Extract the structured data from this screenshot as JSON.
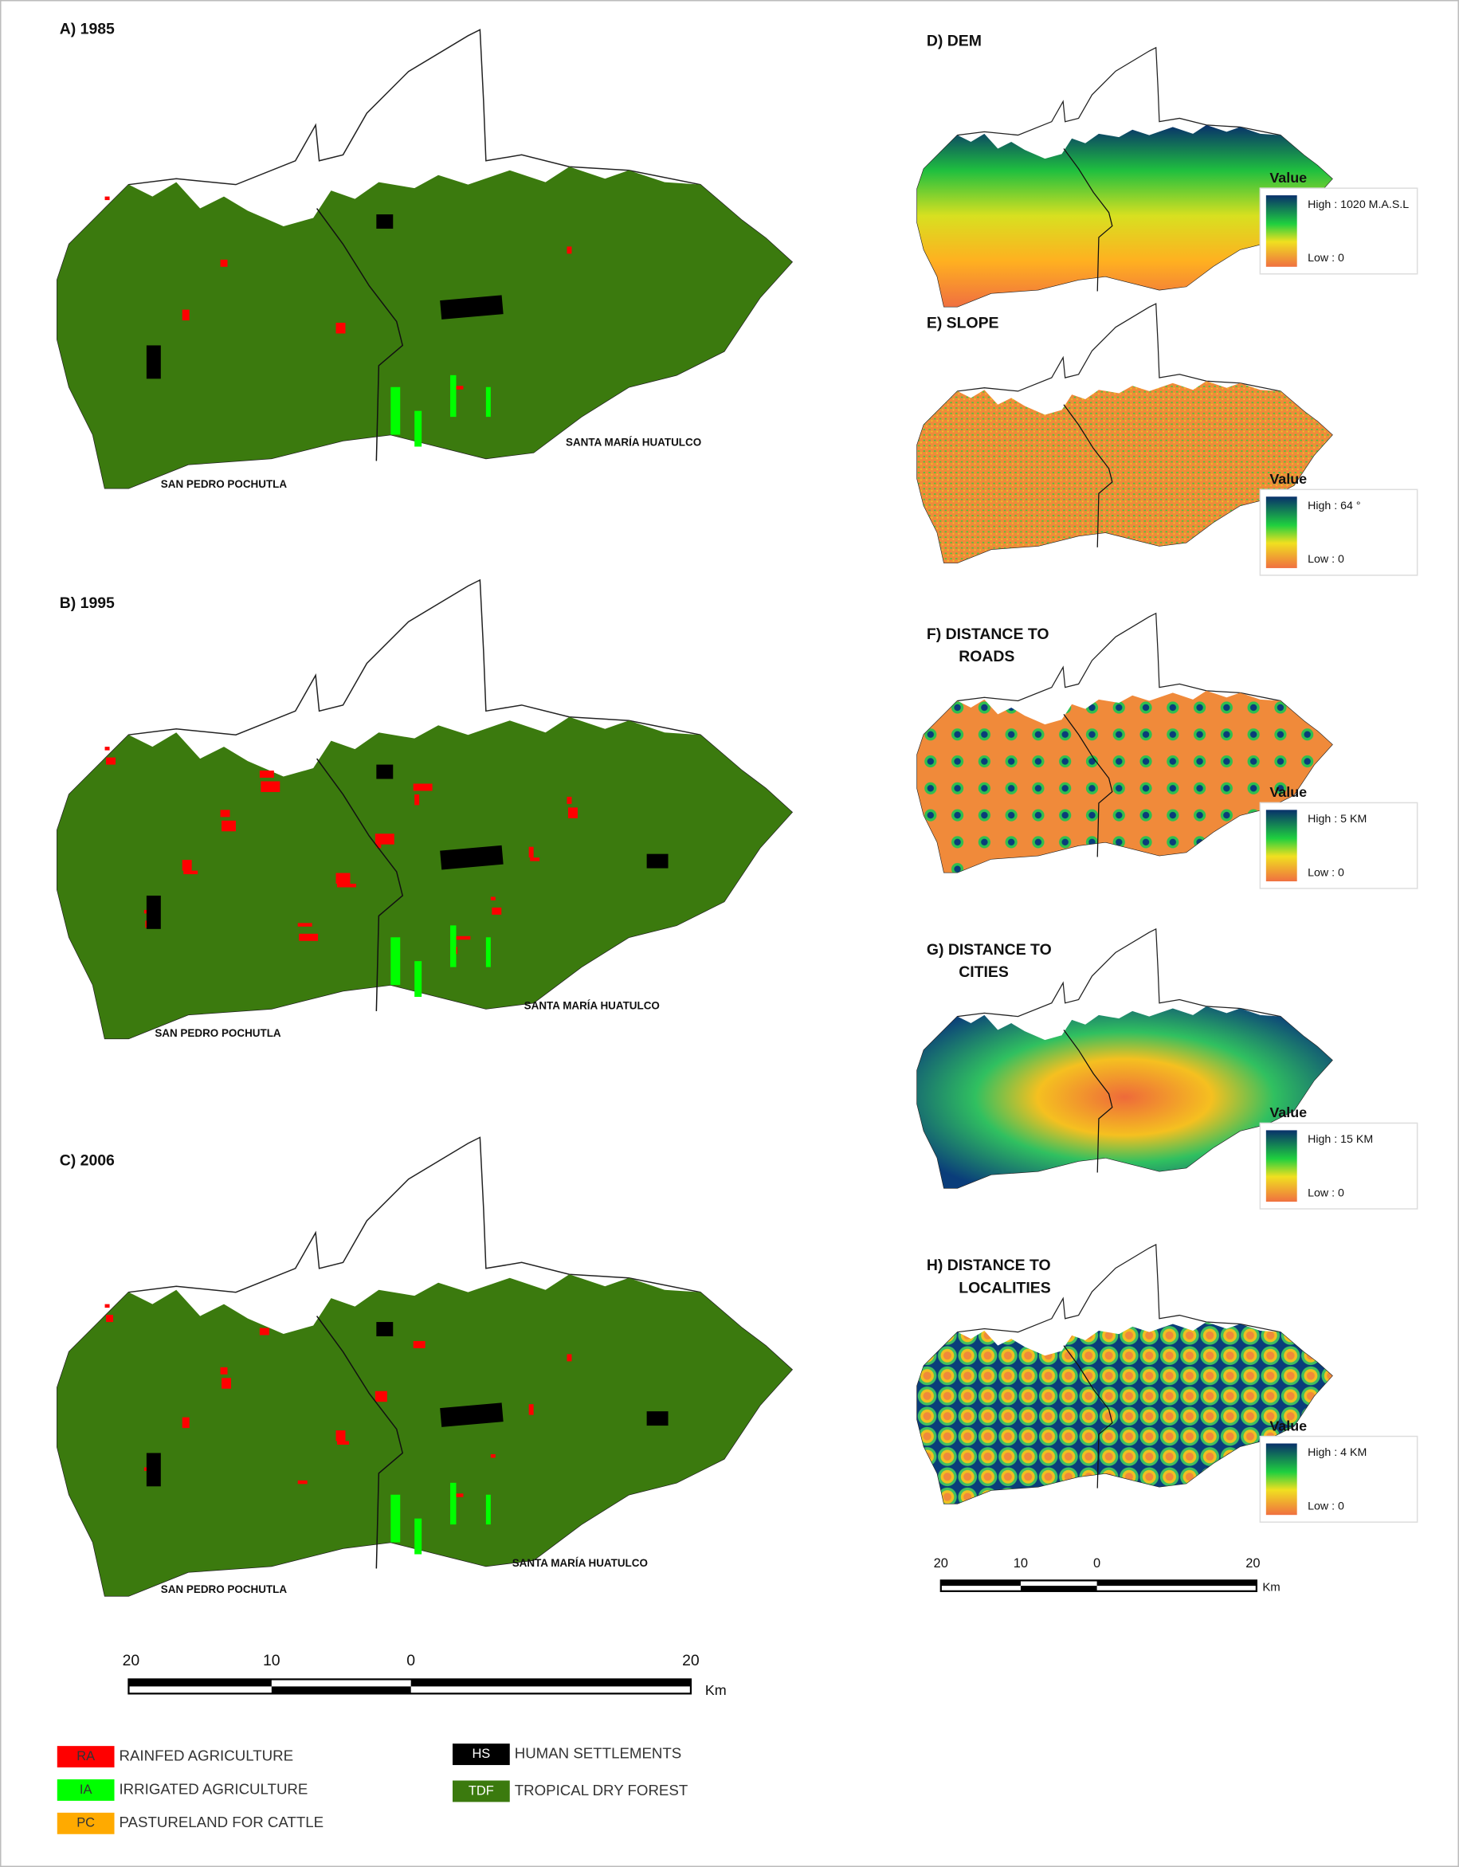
{
  "land_use_panels": [
    {
      "title": "A) 1985",
      "labels": [
        "SAN PEDRO POCHUTLA",
        "SANTA MARÍA HUATULCO"
      ]
    },
    {
      "title": "B) 1995",
      "labels": [
        "SAN PEDRO POCHUTLA",
        "SANTA MARÍA HUATULCO"
      ]
    },
    {
      "title": "C) 2006",
      "labels": [
        "SAN PEDRO POCHUTLA",
        "SANTA MARÍA HUATULCO"
      ]
    }
  ],
  "raster_panels": [
    {
      "title": [
        "D) DEM"
      ],
      "legend_title": "Value",
      "high": "High : 1020 M.A.S.L",
      "low": "Low : 0"
    },
    {
      "title": [
        "E) SLOPE"
      ],
      "legend_title": "Value",
      "high": "High : 64 °",
      "low": "Low : 0"
    },
    {
      "title": [
        "F) DISTANCE TO",
        "ROADS"
      ],
      "legend_title": "Value",
      "high": "High : 5 KM",
      "low": "Low : 0"
    },
    {
      "title": [
        "G) DISTANCE TO",
        "CITIES"
      ],
      "legend_title": "Value",
      "high": "High : 15 KM",
      "low": "Low : 0"
    },
    {
      "title": [
        "H) DISTANCE TO",
        "LOCALITIES"
      ],
      "legend_title": "Value",
      "high": "High : 4 KM",
      "low": "Low : 0"
    }
  ],
  "scale_bars": [
    {
      "ticks": [
        "20",
        "10",
        "0",
        "20"
      ],
      "unit": "Km"
    },
    {
      "ticks": [
        "20",
        "10",
        "0",
        "20"
      ],
      "unit": "Km"
    }
  ],
  "legend": [
    {
      "code": "RA",
      "label": "RAINFED AGRICULTURE",
      "color": "#ff0000"
    },
    {
      "code": "IA",
      "label": "IRRIGATED AGRICULTURE",
      "color": "#00ff00"
    },
    {
      "code": "PC",
      "label": "PASTURELAND FOR CATTLE",
      "color": "#ffaa00"
    },
    {
      "code": "HS",
      "label": "HUMAN SETTLEMENTS",
      "color": "#000000"
    },
    {
      "code": "TDF",
      "label": "TROPICAL DRY FOREST",
      "color": "#3b7a0e"
    }
  ]
}
